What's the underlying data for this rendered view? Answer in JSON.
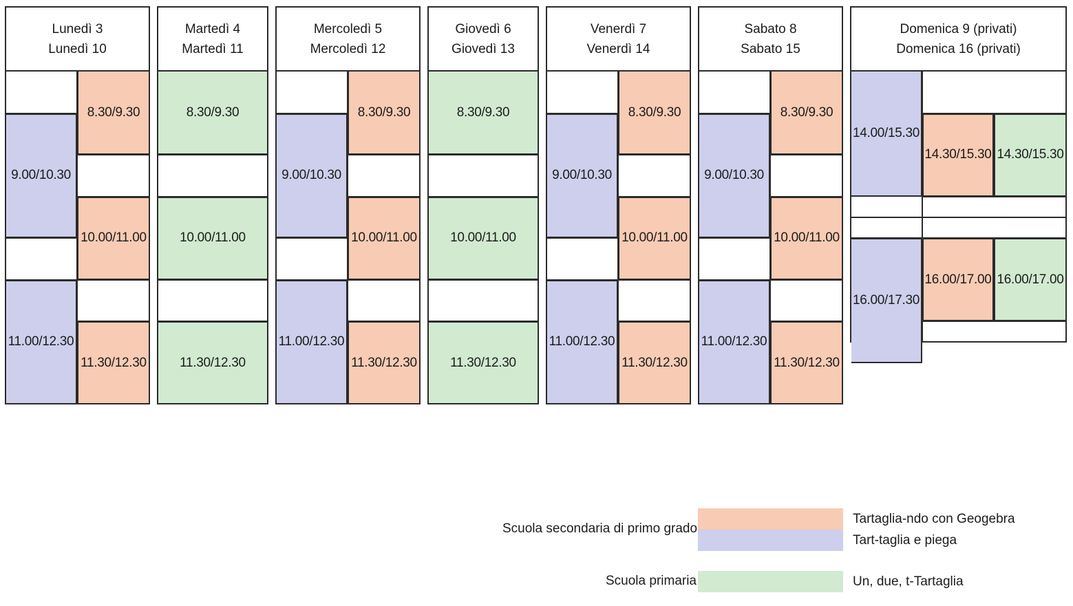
{
  "colors": {
    "tartagliando": "#f8cbb4",
    "piega": "#cdcfec",
    "primaria": "#d1ead0",
    "border": "#2b2b2b"
  },
  "days": [
    {
      "id": "lunedi",
      "line1": "Lunedì 3",
      "line2": "Lunedì 10",
      "slots": [
        {
          "time": "8.30/9.30",
          "activity": "tartagliando"
        },
        {
          "time": "9.00/10.30",
          "activity": "piega"
        },
        {
          "time": "10.00/11.00",
          "activity": "tartagliando"
        },
        {
          "time": "11.00/12.30",
          "activity": "piega"
        },
        {
          "time": "11.30/12.30",
          "activity": "tartagliando"
        }
      ]
    },
    {
      "id": "martedi",
      "line1": "Martedì 4",
      "line2": "Martedì 11",
      "slots": [
        {
          "time": "8.30/9.30",
          "activity": "primaria"
        },
        {
          "time": "10.00/11.00",
          "activity": "primaria"
        },
        {
          "time": "11.30/12.30",
          "activity": "primaria"
        }
      ]
    },
    {
      "id": "mercoledi",
      "line1": "Mercoledì 5",
      "line2": "Mercoledì 12",
      "slots": [
        {
          "time": "8.30/9.30",
          "activity": "tartagliando"
        },
        {
          "time": "9.00/10.30",
          "activity": "piega"
        },
        {
          "time": "10.00/11.00",
          "activity": "tartagliando"
        },
        {
          "time": "11.00/12.30",
          "activity": "piega"
        },
        {
          "time": "11.30/12.30",
          "activity": "tartagliando"
        }
      ]
    },
    {
      "id": "giovedi",
      "line1": "Giovedì 6",
      "line2": "Giovedì 13",
      "slots": [
        {
          "time": "8.30/9.30",
          "activity": "primaria"
        },
        {
          "time": "10.00/11.00",
          "activity": "primaria"
        },
        {
          "time": "11.30/12.30",
          "activity": "primaria"
        }
      ]
    },
    {
      "id": "venerdi",
      "line1": "Venerdì 7",
      "line2": "Venerdì 14",
      "slots": [
        {
          "time": "8.30/9.30",
          "activity": "tartagliando"
        },
        {
          "time": "9.00/10.30",
          "activity": "piega"
        },
        {
          "time": "10.00/11.00",
          "activity": "tartagliando"
        },
        {
          "time": "11.00/12.30",
          "activity": "piega"
        },
        {
          "time": "11.30/12.30",
          "activity": "tartagliando"
        }
      ]
    },
    {
      "id": "sabato",
      "line1": "Sabato 8",
      "line2": "Sabato 15",
      "slots": [
        {
          "time": "8.30/9.30",
          "activity": "tartagliando"
        },
        {
          "time": "9.00/10.30",
          "activity": "piega"
        },
        {
          "time": "10.00/11.00",
          "activity": "tartagliando"
        },
        {
          "time": "11.00/12.30",
          "activity": "piega"
        },
        {
          "time": "11.30/12.30",
          "activity": "tartagliando"
        }
      ]
    },
    {
      "id": "domenica",
      "line1": "Domenica 9 (privati)",
      "line2": "Domenica 16 (privati)",
      "slots": [
        {
          "time": "14.00/15.30",
          "activity": "piega"
        },
        {
          "time": "14.30/15.30",
          "activity": "tartagliando"
        },
        {
          "time": "14.30/15.30",
          "activity": "primaria"
        },
        {
          "time": "16.00/17.30",
          "activity": "piega"
        },
        {
          "time": "16.00/17.00",
          "activity": "tartagliando"
        },
        {
          "time": "16.00/17.00",
          "activity": "primaria"
        }
      ]
    }
  ],
  "legend": {
    "secondaria_label": "Scuola secondaria di primo grado",
    "primaria_label": "Scuola primaria",
    "items": [
      {
        "activity": "tartagliando",
        "label": "Tartaglia-ndo con Geogebra"
      },
      {
        "activity": "piega",
        "label": "Tart-taglia e piega"
      },
      {
        "activity": "primaria",
        "label": "Un, due, t-Tartaglia"
      }
    ]
  }
}
